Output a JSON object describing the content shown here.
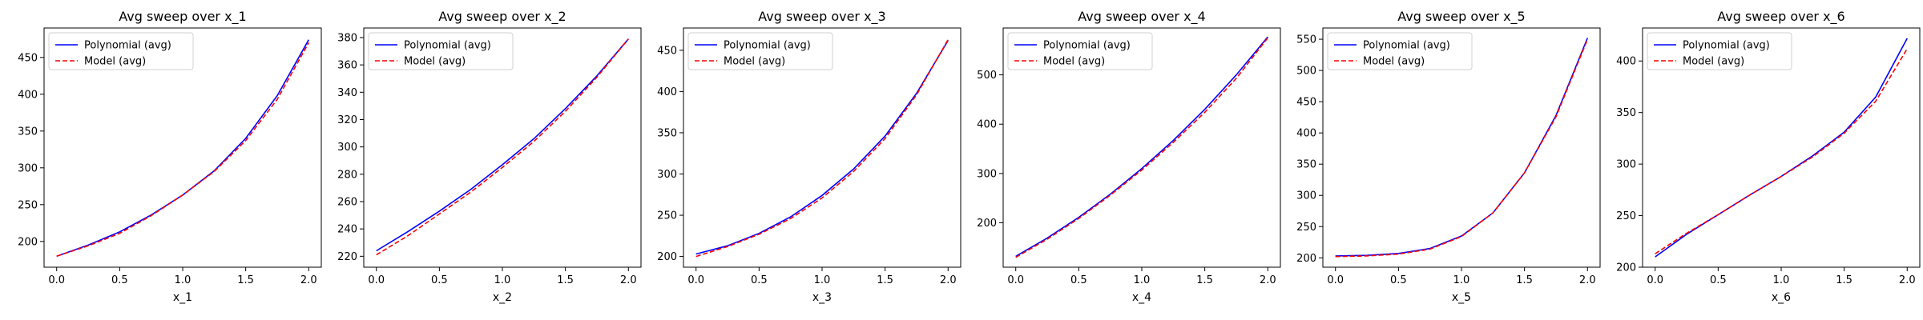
{
  "colors": {
    "series1": "#0000ff",
    "series2": "#ff0000"
  },
  "chart_data": [
    {
      "type": "line",
      "title": "Avg sweep over x_1",
      "xlabel": "x_1",
      "ylabel": "",
      "xlim": [
        -0.1,
        2.1
      ],
      "ylim": [
        165,
        490
      ],
      "xticks": [
        0.0,
        0.5,
        1.0,
        1.5,
        2.0
      ],
      "xtick_labels": [
        "0.0",
        "0.5",
        "1.0",
        "1.5",
        "2.0"
      ],
      "yticks": [
        200,
        250,
        300,
        350,
        400,
        450
      ],
      "ytick_labels": [
        "200",
        "250",
        "300",
        "350",
        "400",
        "450"
      ],
      "legend": "upper left",
      "x": [
        0,
        0.25,
        0.5,
        0.75,
        1.0,
        1.25,
        1.5,
        1.75,
        2.0
      ],
      "series": [
        {
          "name": "Polynomial (avg)",
          "style": "solid",
          "values": [
            180,
            195,
            213,
            236,
            263,
            296,
            340,
            398,
            474
          ]
        },
        {
          "name": "Model (avg)",
          "style": "dashed",
          "values": [
            180,
            194,
            211,
            235,
            263,
            295,
            337,
            393,
            470
          ]
        }
      ]
    },
    {
      "type": "line",
      "title": "Avg sweep over x_2",
      "xlabel": "x_2",
      "ylabel": "",
      "xlim": [
        -0.1,
        2.1
      ],
      "ylim": [
        212,
        387
      ],
      "xticks": [
        0.0,
        0.5,
        1.0,
        1.5,
        2.0
      ],
      "xtick_labels": [
        "0.0",
        "0.5",
        "1.0",
        "1.5",
        "2.0"
      ],
      "yticks": [
        220,
        240,
        260,
        280,
        300,
        320,
        340,
        360,
        380
      ],
      "ytick_labels": [
        "220",
        "240",
        "260",
        "280",
        "300",
        "320",
        "340",
        "360",
        "380"
      ],
      "legend": "upper left",
      "x": [
        0,
        0.25,
        0.5,
        0.75,
        1.0,
        1.25,
        1.5,
        1.75,
        2.0
      ],
      "series": [
        {
          "name": "Polynomial (avg)",
          "style": "solid",
          "values": [
            224,
            238,
            253,
            269,
            287,
            306,
            328,
            352,
            379
          ]
        },
        {
          "name": "Model (avg)",
          "style": "dashed",
          "values": [
            221,
            235,
            251,
            267,
            285,
            304,
            326,
            351,
            379
          ]
        }
      ]
    },
    {
      "type": "line",
      "title": "Avg sweep over x_3",
      "xlabel": "x_3",
      "ylabel": "",
      "xlim": [
        -0.1,
        2.1
      ],
      "ylim": [
        187,
        477
      ],
      "xticks": [
        0.0,
        0.5,
        1.0,
        1.5,
        2.0
      ],
      "xtick_labels": [
        "0.0",
        "0.5",
        "1.0",
        "1.5",
        "2.0"
      ],
      "yticks": [
        200,
        250,
        300,
        350,
        400,
        450
      ],
      "ytick_labels": [
        "200",
        "250",
        "300",
        "350",
        "400",
        "450"
      ],
      "legend": "upper left",
      "x": [
        0,
        0.25,
        0.5,
        0.75,
        1.0,
        1.25,
        1.5,
        1.75,
        2.0
      ],
      "series": [
        {
          "name": "Polynomial (avg)",
          "style": "solid",
          "values": [
            203,
            213,
            228,
            248,
            274,
            306,
            346,
            398,
            462
          ]
        },
        {
          "name": "Model (avg)",
          "style": "dashed",
          "values": [
            200,
            212,
            227,
            246,
            271,
            303,
            343,
            396,
            463
          ]
        }
      ]
    },
    {
      "type": "line",
      "title": "Avg sweep over x_4",
      "xlabel": "x_4",
      "ylabel": "",
      "xlim": [
        -0.1,
        2.1
      ],
      "ylim": [
        110,
        595
      ],
      "xticks": [
        0.0,
        0.5,
        1.0,
        1.5,
        2.0
      ],
      "xtick_labels": [
        "0.0",
        "0.5",
        "1.0",
        "1.5",
        "2.0"
      ],
      "yticks": [
        200,
        300,
        400,
        500
      ],
      "ytick_labels": [
        "200",
        "300",
        "400",
        "500"
      ],
      "legend": "upper left",
      "x": [
        0,
        0.25,
        0.5,
        0.75,
        1.0,
        1.25,
        1.5,
        1.75,
        2.0
      ],
      "series": [
        {
          "name": "Polynomial (avg)",
          "style": "solid",
          "values": [
            132,
            169,
            211,
            258,
            310,
            367,
            430,
            500,
            577
          ]
        },
        {
          "name": "Model (avg)",
          "style": "dashed",
          "values": [
            130,
            167,
            209,
            256,
            307,
            363,
            424,
            493,
            575
          ]
        }
      ]
    },
    {
      "type": "line",
      "title": "Avg sweep over x_5",
      "xlabel": "x_5",
      "ylabel": "",
      "xlim": [
        -0.1,
        2.1
      ],
      "ylim": [
        185,
        568
      ],
      "xticks": [
        0.0,
        0.5,
        1.0,
        1.5,
        2.0
      ],
      "xtick_labels": [
        "0.0",
        "0.5",
        "1.0",
        "1.5",
        "2.0"
      ],
      "yticks": [
        200,
        250,
        300,
        350,
        400,
        450,
        500,
        550
      ],
      "ytick_labels": [
        "200",
        "250",
        "300",
        "350",
        "400",
        "450",
        "500",
        "550"
      ],
      "legend": "upper left",
      "x": [
        0,
        0.25,
        0.5,
        0.75,
        1.0,
        1.25,
        1.5,
        1.75,
        2.0
      ],
      "series": [
        {
          "name": "Polynomial (avg)",
          "style": "solid",
          "values": [
            203,
            204,
            207,
            215,
            235,
            272,
            336,
            428,
            552
          ]
        },
        {
          "name": "Model (avg)",
          "style": "dashed",
          "values": [
            202,
            203,
            206,
            214,
            234,
            272,
            336,
            426,
            550
          ]
        }
      ]
    },
    {
      "type": "line",
      "title": "Avg sweep over x_6",
      "xlabel": "x_6",
      "ylabel": "",
      "xlim": [
        -0.1,
        2.1
      ],
      "ylim": [
        200,
        432
      ],
      "xticks": [
        0.0,
        0.5,
        1.0,
        1.5,
        2.0
      ],
      "xtick_labels": [
        "0.0",
        "0.5",
        "1.0",
        "1.5",
        "2.0"
      ],
      "yticks": [
        200,
        250,
        300,
        350,
        400
      ],
      "ytick_labels": [
        "200",
        "250",
        "300",
        "350",
        "400"
      ],
      "legend": "upper left",
      "x": [
        0,
        0.25,
        0.5,
        0.75,
        1.0,
        1.25,
        1.5,
        1.75,
        2.0
      ],
      "series": [
        {
          "name": "Polynomial (avg)",
          "style": "solid",
          "values": [
            210,
            232,
            251,
            270,
            288,
            308,
            331,
            365,
            422
          ]
        },
        {
          "name": "Model (avg)",
          "style": "dashed",
          "values": [
            213,
            233,
            251,
            270,
            288,
            307,
            330,
            361,
            412
          ]
        }
      ]
    }
  ]
}
